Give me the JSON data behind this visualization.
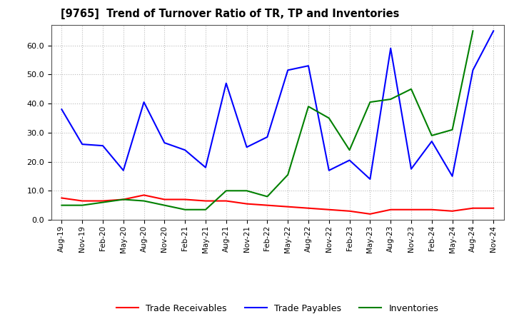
{
  "title": "[9765]  Trend of Turnover Ratio of TR, TP and Inventories",
  "x_labels": [
    "Aug-19",
    "Nov-19",
    "Feb-20",
    "May-20",
    "Aug-20",
    "Nov-20",
    "Feb-21",
    "May-21",
    "Aug-21",
    "Nov-21",
    "Feb-22",
    "May-22",
    "Aug-22",
    "Nov-22",
    "Feb-23",
    "May-23",
    "Aug-23",
    "Nov-23",
    "Feb-24",
    "May-24",
    "Aug-24",
    "Nov-24"
  ],
  "trade_receivables": [
    7.5,
    6.5,
    6.5,
    7.0,
    8.5,
    7.0,
    7.0,
    6.5,
    6.5,
    5.5,
    5.0,
    4.5,
    4.0,
    3.5,
    3.0,
    2.0,
    3.5,
    3.5,
    3.5,
    3.0,
    4.0,
    4.0
  ],
  "trade_payables": [
    38.0,
    26.0,
    25.5,
    17.0,
    40.5,
    26.5,
    24.0,
    18.0,
    47.0,
    25.0,
    28.5,
    51.5,
    53.0,
    17.0,
    20.5,
    14.0,
    59.0,
    17.5,
    27.0,
    15.0,
    51.5,
    65.0
  ],
  "inventories": [
    5.0,
    5.0,
    6.0,
    7.0,
    6.5,
    5.0,
    3.5,
    3.5,
    10.0,
    10.0,
    8.0,
    15.5,
    39.0,
    35.0,
    24.0,
    40.5,
    41.5,
    45.0,
    29.0,
    31.0,
    65.0,
    null
  ],
  "ylim": [
    0.0,
    67.0
  ],
  "yticks": [
    0.0,
    10.0,
    20.0,
    30.0,
    40.0,
    50.0,
    60.0
  ],
  "color_tr": "#ff0000",
  "color_tp": "#0000ff",
  "color_inv": "#008000",
  "legend_labels": [
    "Trade Receivables",
    "Trade Payables",
    "Inventories"
  ],
  "background_color": "#ffffff",
  "grid_color": "#bbbbbb"
}
